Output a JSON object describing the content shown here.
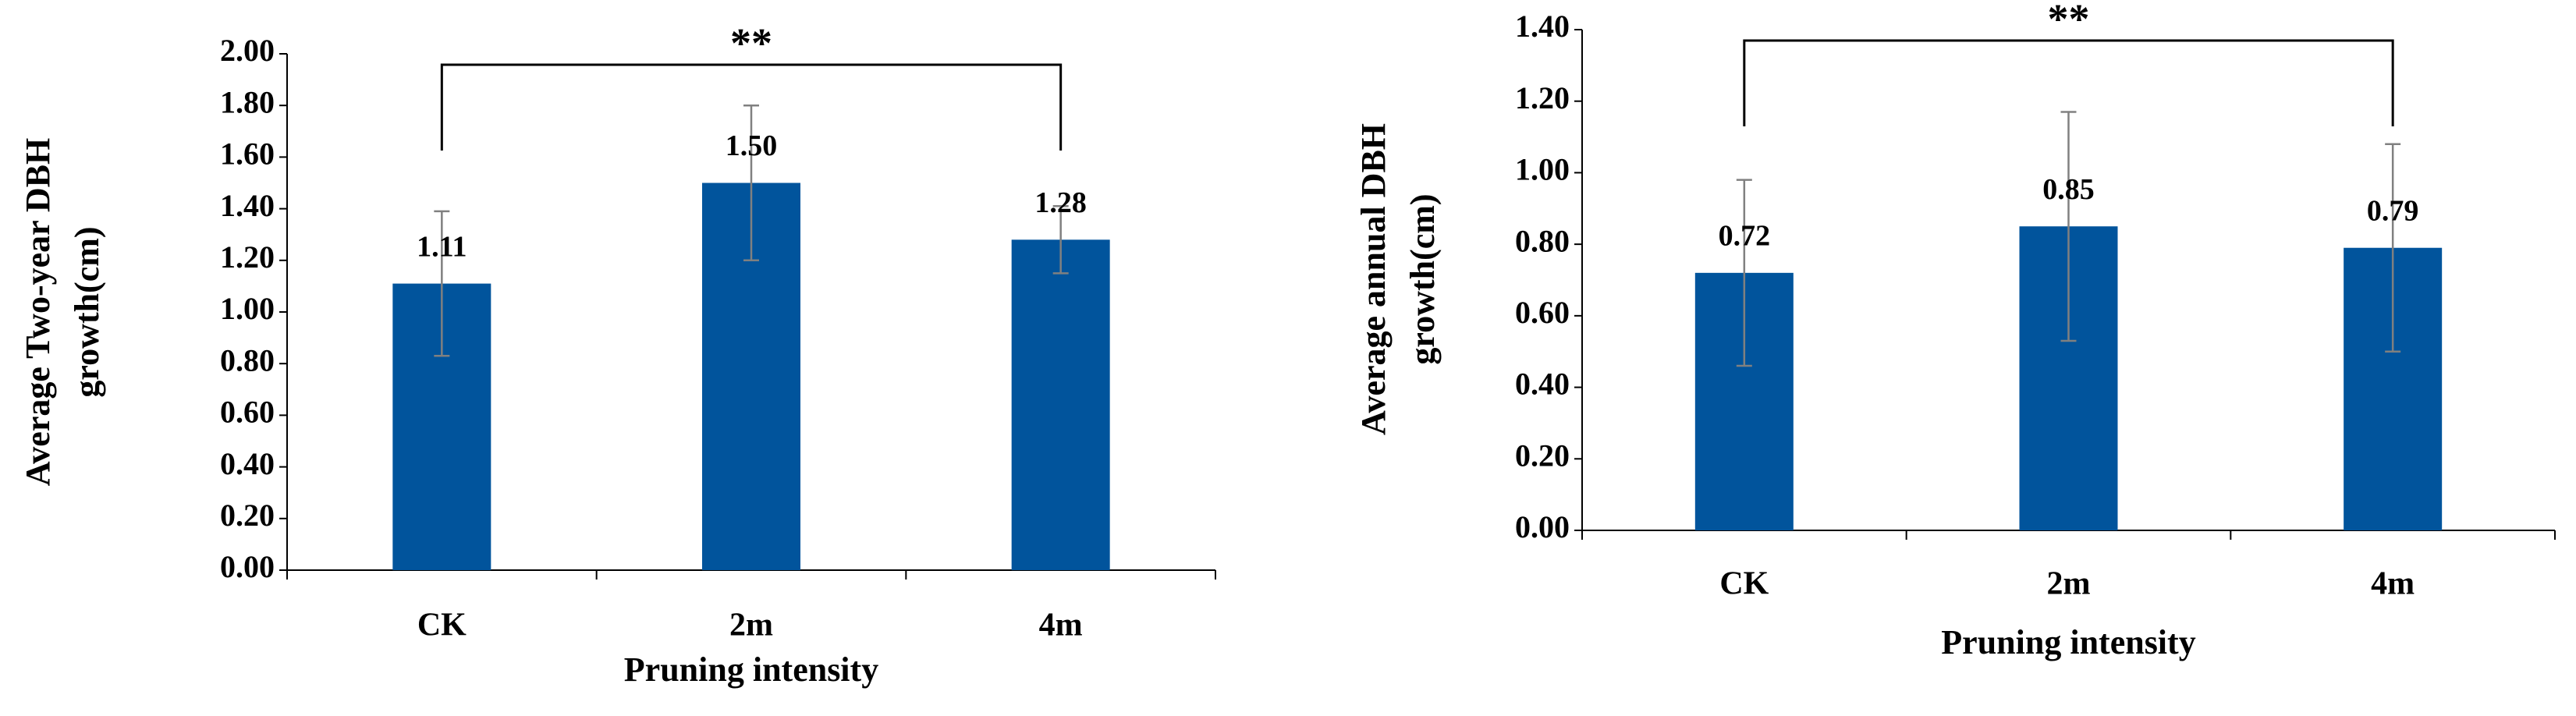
{
  "chart_data": [
    {
      "type": "bar",
      "x_label": "Pruning intensity",
      "y_label": [
        "Average Two-year DBH",
        "growth(cm)"
      ],
      "categories": [
        "CK",
        "2m",
        "4m"
      ],
      "values": [
        1.11,
        1.5,
        1.28
      ],
      "value_labels": [
        "1.11",
        "1.50",
        "1.28"
      ],
      "errors": [
        0.28,
        0.3,
        0.13
      ],
      "color": "#01549c",
      "annotation": "**",
      "ylim": [
        0,
        2
      ],
      "yticks": [
        {
          "value": 0,
          "label": "0.00"
        },
        {
          "value": 0.2,
          "label": "0.20"
        },
        {
          "value": 0.4,
          "label": "0.40"
        },
        {
          "value": 0.6,
          "label": "0.60"
        },
        {
          "value": 0.8,
          "label": "0.80"
        },
        {
          "value": 1,
          "label": "1.00"
        },
        {
          "value": 1.2,
          "label": "1.20"
        },
        {
          "value": 1.4,
          "label": "1.40"
        },
        {
          "value": 1.6,
          "label": "1.60"
        },
        {
          "value": 1.8,
          "label": "1.80"
        },
        {
          "value": 2,
          "label": "2.00"
        }
      ]
    },
    {
      "type": "bar",
      "x_label": "Pruning intensity",
      "y_label": [
        "Average annual DBH",
        "growth(cm)"
      ],
      "categories": [
        "CK",
        "2m",
        "4m"
      ],
      "values": [
        0.72,
        0.85,
        0.79
      ],
      "errors": [
        0.26,
        0.32,
        0.29
      ],
      "color": "#01549c",
      "annotation": "**",
      "ylim": [
        0,
        1.4
      ],
      "yticks": [
        {
          "value": 0,
          "label": "0.00"
        },
        {
          "value": 0.2,
          "label": "0.20"
        },
        {
          "value": 0.4,
          "label": "0.40"
        },
        {
          "value": 0.6,
          "label": "0.60"
        },
        {
          "value": 0.8,
          "label": "0.80"
        },
        {
          "value": 1,
          "label": "1.00"
        },
        {
          "value": 1.2,
          "label": "1.20"
        },
        {
          "value": 1.4,
          "label": "1.40"
        }
      ]
    }
  ]
}
